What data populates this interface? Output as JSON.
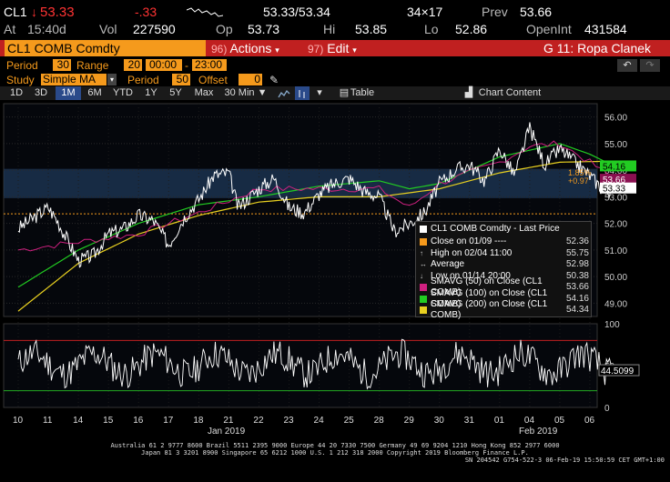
{
  "quote": {
    "ticker": "CL1",
    "arrow": "↓",
    "last": "53.33",
    "change": "-.33",
    "bid_ask": "53.33/53.34",
    "size": "34×17",
    "prev_label": "Prev",
    "prev": "53.66",
    "at_label": "At",
    "time": "15:40d",
    "vol_label": "Vol",
    "vol": "227590",
    "op_label": "Op",
    "open": "53.73",
    "hi_label": "Hi",
    "high": "53.85",
    "lo_label": "Lo",
    "low": "52.86",
    "oi_label": "OpenInt",
    "open_int": "431584"
  },
  "menubar": {
    "security": "CL1 COMB Comdty",
    "actions_num": "96)",
    "actions_label": "Actions",
    "edit_num": "97)",
    "edit_label": "Edit",
    "page_title": "G 11: Ropa Clanek"
  },
  "settings": {
    "period_label": "Period",
    "period_value": "30",
    "range_label": "Range",
    "range_value": "20",
    "time_from": "00:00",
    "time_sep": "-",
    "time_to": "23:00",
    "study_label": "Study",
    "study_value": "Simple MA",
    "study_period_label": "Period",
    "study_period_value": "50",
    "offset_label": "Offset",
    "offset_value": "0"
  },
  "toolbar": {
    "ranges": [
      "1D",
      "3D",
      "1M",
      "6M",
      "YTD",
      "1Y",
      "5Y",
      "Max"
    ],
    "active_range": "1M",
    "interval": "30 Min",
    "table_label": "Table",
    "chart_content_label": "Chart Content"
  },
  "colors": {
    "price": "#ffffff",
    "sma50": "#d02080",
    "sma100": "#22cc22",
    "sma200": "#e8d020",
    "orange": "#f59a1c",
    "band": "#1f3a5c"
  },
  "legend": {
    "title": "CL1 COMB Comdty - Last Price",
    "items": [
      {
        "label": "Close on 01/09 ----",
        "value": "52.36",
        "color": "#f59a1c"
      },
      {
        "label": "High on 02/04 11:00",
        "value": "55.75",
        "color": ""
      },
      {
        "label": "Average",
        "value": "52.98",
        "color": ""
      },
      {
        "label": "Low on 01/14 20:00",
        "value": "50.38",
        "color": ""
      },
      {
        "label": "SMAVG (50)  on Close (CL1 COMB)",
        "value": "53.66",
        "color": "#d02080"
      },
      {
        "label": "SMAVG (100)  on Close (CL1 COMB)",
        "value": "54.16",
        "color": "#22cc22"
      },
      {
        "label": "SMAVG (200)  on Close (CL1 COMB)",
        "value": "54.34",
        "color": "#e8d020"
      }
    ]
  },
  "chart_data": {
    "type": "line",
    "price_axis": {
      "ylim": [
        48.5,
        56.5
      ],
      "ticks": [
        "56.00",
        "55.00",
        "54.00",
        "53.00",
        "52.00",
        "51.00",
        "50.00",
        "49.00"
      ]
    },
    "price_labels": {
      "pct": "1.85%",
      "chg": "+0.97",
      "sma100": "54.16",
      "sma50": "53.66",
      "last": "53.33"
    },
    "osc_axis": {
      "ylim": [
        0,
        100
      ],
      "ticks": [
        "100",
        "50",
        "0"
      ],
      "last": "44.5099"
    },
    "x_ticks": [
      "10",
      "11",
      "14",
      "15",
      "16",
      "17",
      "18",
      "21",
      "22",
      "23",
      "24",
      "25",
      "28",
      "29",
      "30",
      "31",
      "01",
      "04",
      "05",
      "06"
    ],
    "month_labels": [
      "Jan 2019",
      "Feb 2019"
    ],
    "price_knots": [
      [
        0,
        51.8
      ],
      [
        1,
        52.6
      ],
      [
        1.3,
        52.1
      ],
      [
        2,
        50.6
      ],
      [
        2.5,
        50.8
      ],
      [
        3,
        51.6
      ],
      [
        3.5,
        51.8
      ],
      [
        4,
        52.3
      ],
      [
        4.5,
        52.1
      ],
      [
        5,
        51.2
      ],
      [
        5.5,
        52.2
      ],
      [
        6,
        52.9
      ],
      [
        6.5,
        53.8
      ],
      [
        7,
        53.9
      ],
      [
        7.3,
        52.6
      ],
      [
        8,
        53.3
      ],
      [
        8.5,
        53.7
      ],
      [
        9,
        52.6
      ],
      [
        9.5,
        52.4
      ],
      [
        10,
        53.1
      ],
      [
        10.5,
        53.5
      ],
      [
        11,
        53.7
      ],
      [
        11.5,
        53.2
      ],
      [
        12,
        53.0
      ],
      [
        12.5,
        51.7
      ],
      [
        13,
        52.0
      ],
      [
        13.5,
        52.4
      ],
      [
        14,
        53.5
      ],
      [
        14.5,
        54.0
      ],
      [
        15,
        54.2
      ],
      [
        15.5,
        53.6
      ],
      [
        16,
        54.8
      ],
      [
        16.5,
        53.8
      ],
      [
        17,
        55.6
      ],
      [
        17.5,
        54.2
      ],
      [
        18,
        54.8
      ],
      [
        18.5,
        54.3
      ],
      [
        19,
        53.8
      ],
      [
        19.5,
        53.2
      ],
      [
        19.8,
        53.3
      ]
    ],
    "sma50_knots": [
      [
        0,
        51.0
      ],
      [
        2,
        51.3
      ],
      [
        4,
        51.6
      ],
      [
        6,
        52.4
      ],
      [
        8,
        53.3
      ],
      [
        10,
        53.3
      ],
      [
        12,
        53.3
      ],
      [
        13,
        52.6
      ],
      [
        14,
        53.5
      ],
      [
        16,
        54.3
      ],
      [
        17,
        54.9
      ],
      [
        18,
        55.0
      ],
      [
        19,
        54.3
      ],
      [
        19.8,
        53.66
      ]
    ],
    "sma100_knots": [
      [
        0,
        49.6
      ],
      [
        2,
        51.0
      ],
      [
        4,
        52.0
      ],
      [
        6,
        52.7
      ],
      [
        8,
        53.0
      ],
      [
        10,
        53.4
      ],
      [
        12,
        53.6
      ],
      [
        13,
        53.3
      ],
      [
        14,
        53.5
      ],
      [
        16,
        54.5
      ],
      [
        18,
        55.0
      ],
      [
        19,
        54.6
      ],
      [
        19.8,
        54.16
      ]
    ],
    "sma200_knots": [
      [
        0,
        48.7
      ],
      [
        2,
        50.5
      ],
      [
        4,
        51.6
      ],
      [
        6,
        52.3
      ],
      [
        8,
        52.8
      ],
      [
        10,
        53.0
      ],
      [
        12,
        53.0
      ],
      [
        14,
        53.3
      ],
      [
        16,
        53.9
      ],
      [
        18,
        54.3
      ],
      [
        19.8,
        54.34
      ]
    ],
    "close_line": 52.36,
    "osc_upper": 80,
    "osc_lower": 20
  },
  "footer": {
    "line1": "Australia 61 2 9777 8600 Brazil 5511 2395 9000 Europe 44 20 7330 7500 Germany 49 69 9204 1210 Hong Kong 852 2977 6000",
    "line2": "Japan 81 3 3201 8900          Singapore 65 6212 1000          U.S. 1 212 318 2000          Copyright 2019 Bloomberg Finance L.P.",
    "line3": "SN 204542 G754-522-3 06-Feb-19 15:50:59 CET  GMT+1:00"
  }
}
